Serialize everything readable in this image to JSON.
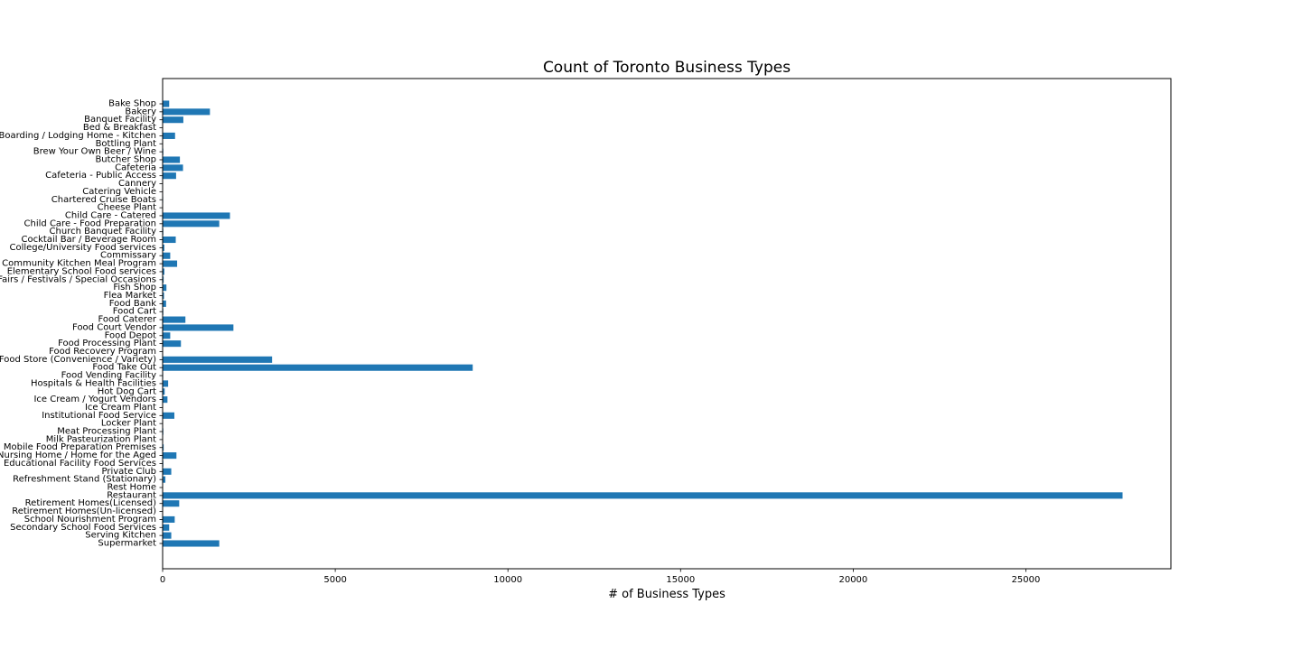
{
  "chart_data": {
    "type": "bar",
    "orientation": "horizontal",
    "title": "Count of Toronto Business Types",
    "xlabel": "# of Business Types",
    "ylabel": "",
    "xlim": [
      0,
      29200
    ],
    "xticks": [
      0,
      5000,
      10000,
      15000,
      20000,
      25000
    ],
    "grid": false,
    "bar_color": "#1f77b4",
    "categories": [
      "Bake Shop",
      "Bakery",
      "Banquet Facility",
      "Bed & Breakfast",
      "Boarding / Lodging Home - Kitchen",
      "Bottling Plant",
      "Brew Your Own Beer / Wine",
      "Butcher Shop",
      "Cafeteria",
      "Cafeteria - Public Access",
      "Cannery",
      "Catering Vehicle",
      "Chartered Cruise Boats",
      "Cheese Plant",
      "Child Care - Catered",
      "Child Care - Food Preparation",
      "Church Banquet Facility",
      "Cocktail Bar / Beverage Room",
      "College/University Food services",
      "Commissary",
      "Community Kitchen Meal Program",
      "Elementary School Food services",
      "Fairs / Festivals / Special Occasions",
      "Fish Shop",
      "Flea Market",
      "Food Bank",
      "Food Cart",
      "Food Caterer",
      "Food Court Vendor",
      "Food Depot",
      "Food Processing Plant",
      "Food Recovery Program",
      "Food Store (Convenience / Variety)",
      "Food Take Out",
      "Food Vending Facility",
      "Hospitals & Health Facilities",
      "Hot Dog Cart",
      "Ice Cream / Yogurt Vendors",
      "Ice Cream Plant",
      "Institutional Food Service",
      "Locker Plant",
      "Meat Processing Plant",
      "Milk Pasteurization Plant",
      "Mobile Food Preparation Premises",
      "Nursing Home / Home for the Aged",
      "Educational Facility Food Services",
      "Private Club",
      "Refreshment Stand (Stationary)",
      "Rest Home",
      "Restaurant",
      "Retirement Homes(Licensed)",
      "Retirement Homes(Un-licensed)",
      "School Nourishment Program",
      "Secondary School Food Services",
      "Serving Kitchen",
      "Supermarket"
    ],
    "values": [
      190,
      1370,
      600,
      5,
      360,
      10,
      20,
      500,
      590,
      390,
      5,
      10,
      15,
      5,
      1950,
      1640,
      20,
      380,
      50,
      220,
      420,
      50,
      30,
      110,
      40,
      100,
      20,
      660,
      2050,
      220,
      530,
      5,
      3170,
      8980,
      15,
      160,
      60,
      140,
      5,
      340,
      5,
      20,
      10,
      30,
      400,
      20,
      250,
      80,
      10,
      27800,
      480,
      10,
      350,
      190,
      250,
      1640
    ]
  }
}
